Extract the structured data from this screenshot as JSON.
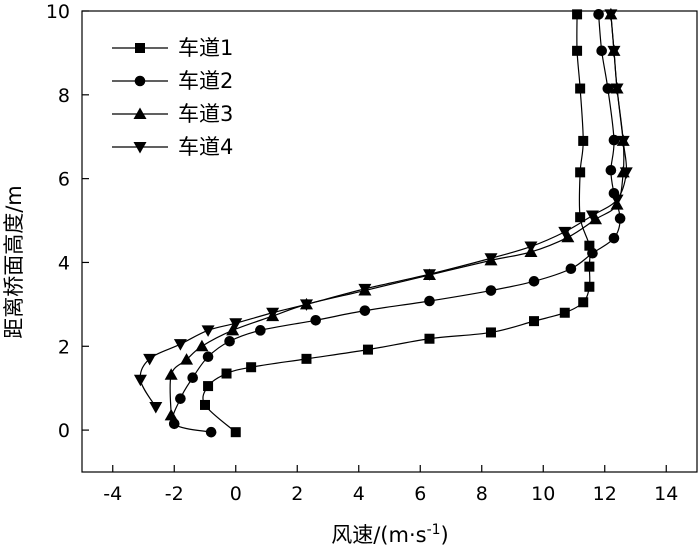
{
  "chart_data": {
    "type": "line",
    "xlabel": "风速/(m·s",
    "xlabel_sup": "-1",
    "xlabel_close": ")",
    "ylabel": "距离桥面高度/m",
    "xlim": [
      -5,
      15
    ],
    "ylim": [
      -1,
      10
    ],
    "x_ticks": [
      -4,
      -2,
      0,
      2,
      4,
      6,
      8,
      10,
      12,
      14
    ],
    "x_tick_labels": [
      "-4",
      "-2",
      "0",
      "2",
      "4",
      "6",
      "8",
      "10",
      "12",
      "14"
    ],
    "y_ticks": [
      0,
      2,
      4,
      6,
      8,
      10
    ],
    "y_tick_labels": [
      "0",
      "2",
      "4",
      "6",
      "8",
      "10"
    ],
    "grid": false,
    "legend_position": "top-left",
    "series": [
      {
        "name": "车道1",
        "marker": "square",
        "points": [
          [
            0,
            -0.05
          ],
          [
            -1.0,
            0.6
          ],
          [
            -0.9,
            1.05
          ],
          [
            -0.3,
            1.35
          ],
          [
            0.5,
            1.5
          ],
          [
            2.3,
            1.7
          ],
          [
            4.3,
            1.92
          ],
          [
            6.3,
            2.18
          ],
          [
            8.3,
            2.33
          ],
          [
            9.7,
            2.6
          ],
          [
            10.7,
            2.8
          ],
          [
            11.3,
            3.05
          ],
          [
            11.5,
            3.42
          ],
          [
            11.5,
            3.9
          ],
          [
            11.5,
            4.4
          ],
          [
            11.2,
            5.08
          ],
          [
            11.2,
            6.15
          ],
          [
            11.3,
            6.9
          ],
          [
            11.2,
            8.15
          ],
          [
            11.1,
            9.05
          ],
          [
            11.1,
            9.92
          ]
        ]
      },
      {
        "name": "车道2",
        "marker": "circle",
        "points": [
          [
            -0.8,
            -0.05
          ],
          [
            -2.0,
            0.15
          ],
          [
            -1.8,
            0.75
          ],
          [
            -1.4,
            1.25
          ],
          [
            -0.9,
            1.75
          ],
          [
            -0.2,
            2.12
          ],
          [
            0.8,
            2.38
          ],
          [
            2.6,
            2.62
          ],
          [
            4.2,
            2.85
          ],
          [
            6.3,
            3.08
          ],
          [
            8.3,
            3.33
          ],
          [
            9.7,
            3.55
          ],
          [
            10.9,
            3.85
          ],
          [
            11.6,
            4.22
          ],
          [
            12.3,
            4.58
          ],
          [
            12.5,
            5.05
          ],
          [
            12.3,
            5.65
          ],
          [
            12.2,
            6.2
          ],
          [
            12.3,
            6.92
          ],
          [
            12.1,
            8.15
          ],
          [
            11.9,
            9.05
          ],
          [
            11.8,
            9.92
          ]
        ]
      },
      {
        "name": "车道3",
        "marker": "triangle-up",
        "points": [
          [
            -2.1,
            0.35
          ],
          [
            -2.1,
            1.32
          ],
          [
            -1.6,
            1.68
          ],
          [
            -1.1,
            2.0
          ],
          [
            -0.1,
            2.38
          ],
          [
            1.2,
            2.72
          ],
          [
            2.3,
            3.0
          ],
          [
            4.2,
            3.33
          ],
          [
            6.3,
            3.7
          ],
          [
            8.3,
            4.05
          ],
          [
            9.6,
            4.25
          ],
          [
            10.8,
            4.6
          ],
          [
            11.7,
            5.03
          ],
          [
            12.4,
            5.38
          ],
          [
            12.6,
            6.15
          ],
          [
            12.6,
            6.9
          ],
          [
            12.4,
            8.15
          ],
          [
            12.3,
            9.05
          ],
          [
            12.2,
            9.92
          ]
        ]
      },
      {
        "name": "车道4",
        "marker": "triangle-down",
        "points": [
          [
            -2.6,
            0.55
          ],
          [
            -3.1,
            1.2
          ],
          [
            -2.8,
            1.7
          ],
          [
            -1.8,
            2.05
          ],
          [
            -0.9,
            2.38
          ],
          [
            0,
            2.55
          ],
          [
            1.2,
            2.8
          ],
          [
            2.3,
            3.0
          ],
          [
            4.2,
            3.37
          ],
          [
            6.3,
            3.72
          ],
          [
            8.3,
            4.1
          ],
          [
            9.6,
            4.38
          ],
          [
            10.7,
            4.73
          ],
          [
            11.6,
            5.12
          ],
          [
            12.4,
            5.5
          ],
          [
            12.7,
            6.15
          ],
          [
            12.6,
            6.9
          ],
          [
            12.4,
            8.15
          ],
          [
            12.3,
            9.05
          ],
          [
            12.2,
            9.92
          ]
        ]
      }
    ]
  }
}
